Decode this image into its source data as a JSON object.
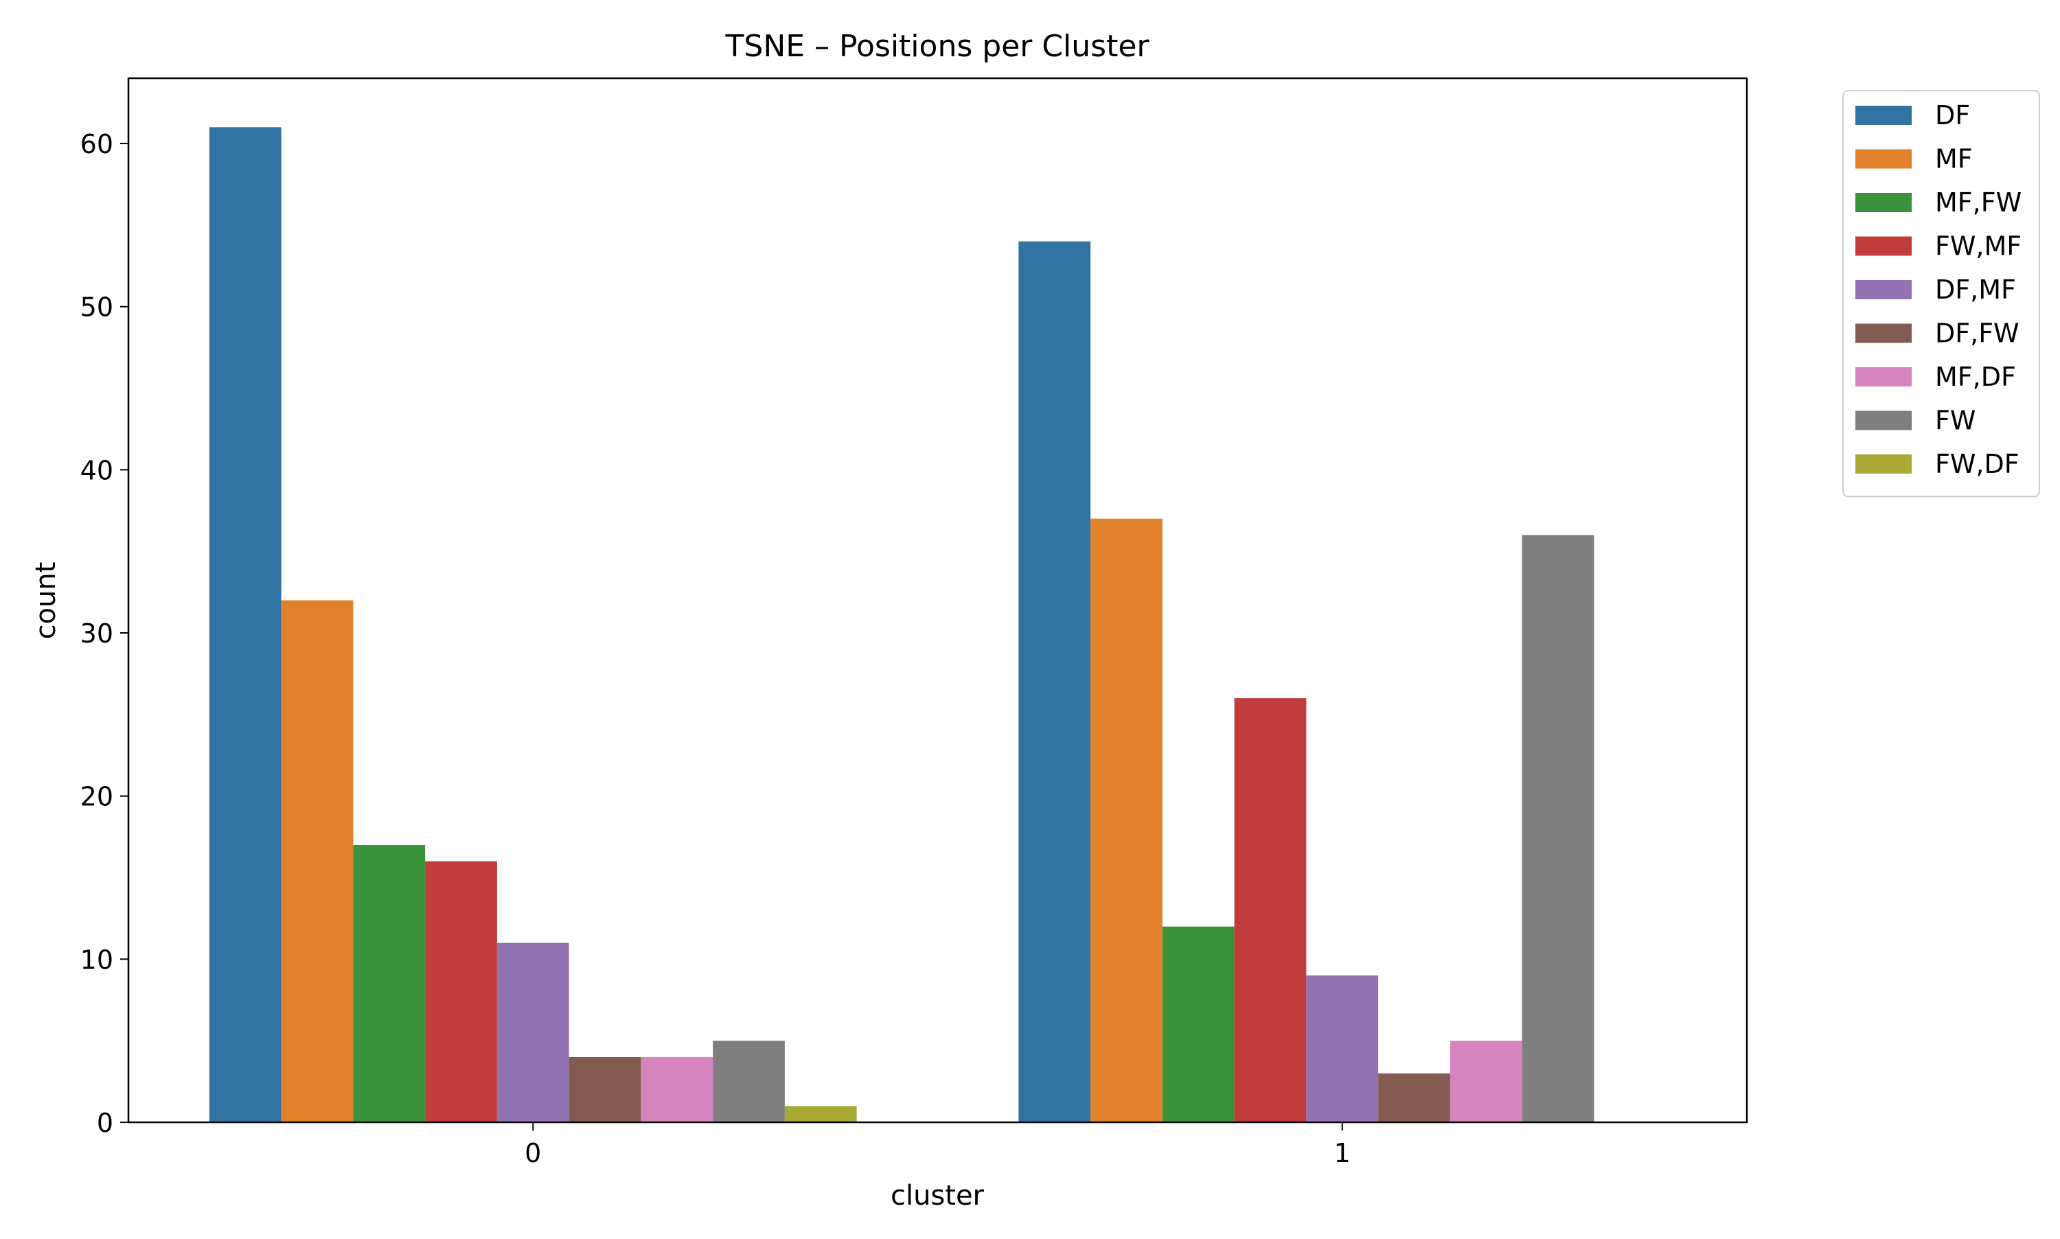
{
  "chart_data": {
    "type": "bar",
    "title": "TSNE – Positions per Cluster",
    "xlabel": "cluster",
    "ylabel": "count",
    "categories": [
      "0",
      "1"
    ],
    "ylim": [
      0,
      64
    ],
    "yticks": [
      0,
      10,
      20,
      30,
      40,
      50,
      60
    ],
    "grid": false,
    "legend_position": "outside-top-right",
    "series": [
      {
        "name": "DF",
        "color": "#3274a1",
        "values": [
          61,
          54
        ]
      },
      {
        "name": "MF",
        "color": "#e1812c",
        "values": [
          32,
          37
        ]
      },
      {
        "name": "MF,FW",
        "color": "#3a923a",
        "values": [
          17,
          12
        ]
      },
      {
        "name": "FW,MF",
        "color": "#c03d3e",
        "values": [
          16,
          26
        ]
      },
      {
        "name": "DF,MF",
        "color": "#9372b2",
        "values": [
          11,
          9
        ]
      },
      {
        "name": "DF,FW",
        "color": "#845b53",
        "values": [
          4,
          3
        ]
      },
      {
        "name": "MF,DF",
        "color": "#d684bd",
        "values": [
          4,
          5
        ]
      },
      {
        "name": "FW",
        "color": "#7f7f7f",
        "values": [
          5,
          36
        ]
      },
      {
        "name": "FW,DF",
        "color": "#a9aa35",
        "values": [
          1,
          0
        ]
      }
    ]
  }
}
